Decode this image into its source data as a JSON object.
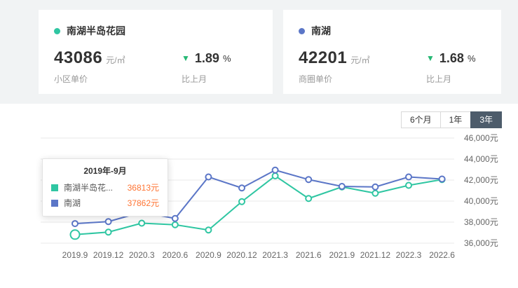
{
  "colors": {
    "down_arrow": "#26b874",
    "series_green": "#2fc6a2",
    "series_blue": "#5b76c7",
    "grid": "#e9e9e9",
    "axis_text": "#666666",
    "tooltip_value": "#ff7433",
    "tab_active_bg": "#4d5c6b"
  },
  "cards": [
    {
      "dot_color": "#2fc6a2",
      "title": "南湖半岛花园",
      "price": "43086",
      "unit": "元/㎡",
      "price_label": "小区单价",
      "change_icon": "▼",
      "change_value": "1.89",
      "change_unit": "%",
      "change_label": "比上月"
    },
    {
      "dot_color": "#5b76c7",
      "title": "南湖",
      "price": "42201",
      "unit": "元/㎡",
      "price_label": "商圈单价",
      "change_icon": "▼",
      "change_value": "1.68",
      "change_unit": "%",
      "change_label": "比上月"
    }
  ],
  "tabs": {
    "items": [
      {
        "label": "6个月",
        "active": false
      },
      {
        "label": "1年",
        "active": false
      },
      {
        "label": "3年",
        "active": true
      }
    ]
  },
  "tooltip": {
    "title": "2019年-9月",
    "rows": [
      {
        "name": "南湖半岛花...",
        "value": "36813元",
        "color": "#2fc6a2"
      },
      {
        "name": "南湖",
        "value": "37862元",
        "color": "#5b76c7"
      }
    ]
  },
  "chart_data": {
    "type": "line",
    "x": [
      "2019.9",
      "2019.12",
      "2020.3",
      "2020.6",
      "2020.9",
      "2020.12",
      "2021.3",
      "2021.6",
      "2021.9",
      "2021.12",
      "2022.3",
      "2022.6"
    ],
    "series": [
      {
        "name": "南湖半岛花园",
        "color": "#2fc6a2",
        "values": [
          36813,
          37050,
          37900,
          37750,
          37250,
          39950,
          42400,
          40250,
          41350,
          40750,
          41500,
          42050
        ]
      },
      {
        "name": "南湖",
        "color": "#5b76c7",
        "values": [
          37862,
          38050,
          38950,
          38350,
          42300,
          41250,
          42950,
          42050,
          41400,
          41350,
          42300,
          42100
        ]
      }
    ],
    "ylim": [
      36000,
      46000
    ],
    "ytick_step": 2000,
    "ytick_suffix": "元",
    "grid": true,
    "legend_position": "tooltip",
    "highlight": {
      "series": 0,
      "index": 0
    }
  }
}
